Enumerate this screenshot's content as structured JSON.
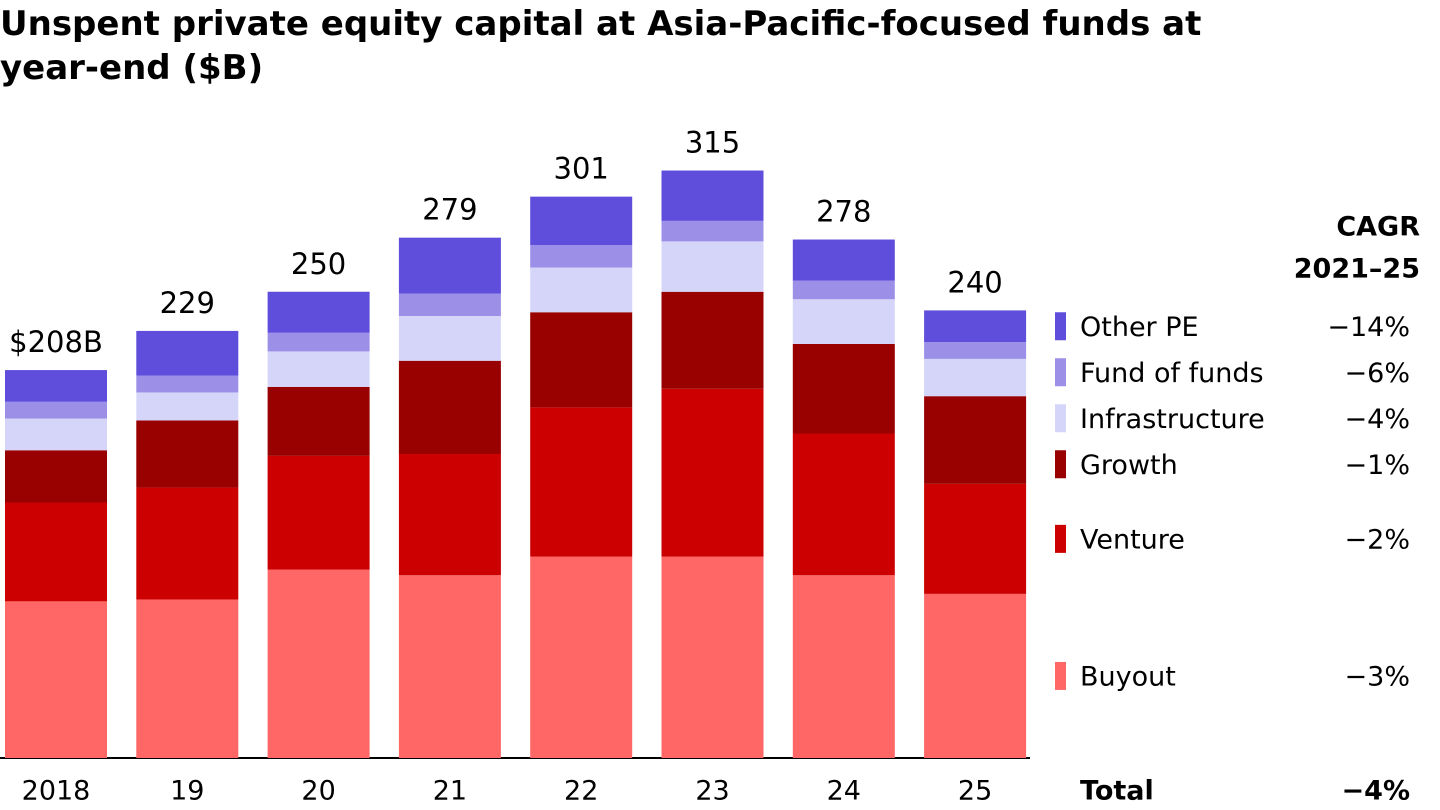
{
  "chart_data": {
    "type": "stacked_bar",
    "title": "Unspent private equity capital at Asia-Pacific-focused funds at year-end ($B)",
    "categories": [
      "2018",
      "19",
      "20",
      "21",
      "22",
      "23",
      "24",
      "25"
    ],
    "series": [
      {
        "name": "Buyout",
        "color": "#ff6666",
        "values": [
          84,
          85,
          101,
          98,
          108,
          108,
          98,
          88
        ]
      },
      {
        "name": "Venture",
        "color": "#cc0000",
        "values": [
          53,
          60,
          61,
          65,
          80,
          90,
          76,
          59
        ]
      },
      {
        "name": "Growth",
        "color": "#990000",
        "values": [
          28,
          36,
          37,
          50,
          51,
          52,
          48,
          47
        ]
      },
      {
        "name": "Infrastructure",
        "color": "#d5d5fa",
        "values": [
          17,
          15,
          19,
          24,
          24,
          27,
          24,
          20
        ]
      },
      {
        "name": "Fund of funds",
        "color": "#9b8fe8",
        "values": [
          9,
          9,
          10,
          12,
          12,
          11,
          10,
          9
        ]
      },
      {
        "name": "Other PE",
        "color": "#5f4ddb",
        "values": [
          17,
          24,
          22,
          30,
          26,
          27,
          22,
          17
        ]
      }
    ],
    "totals": {
      "values": [
        208,
        229,
        250,
        279,
        301,
        315,
        278,
        240
      ],
      "value_labels": [
        "$208B",
        "229",
        "250",
        "279",
        "301",
        "315",
        "278",
        "240"
      ]
    },
    "cagr": {
      "title": [
        "CAGR",
        "2021–25"
      ],
      "values": [
        -3,
        -2,
        -1,
        -4,
        -6,
        -14
      ],
      "value_labels": [
        "−3%",
        "−2%",
        "−1%",
        "−4%",
        "−6%",
        "−14%"
      ],
      "total_label": "Total",
      "total_value": -4,
      "total_value_label": "−4%"
    }
  }
}
